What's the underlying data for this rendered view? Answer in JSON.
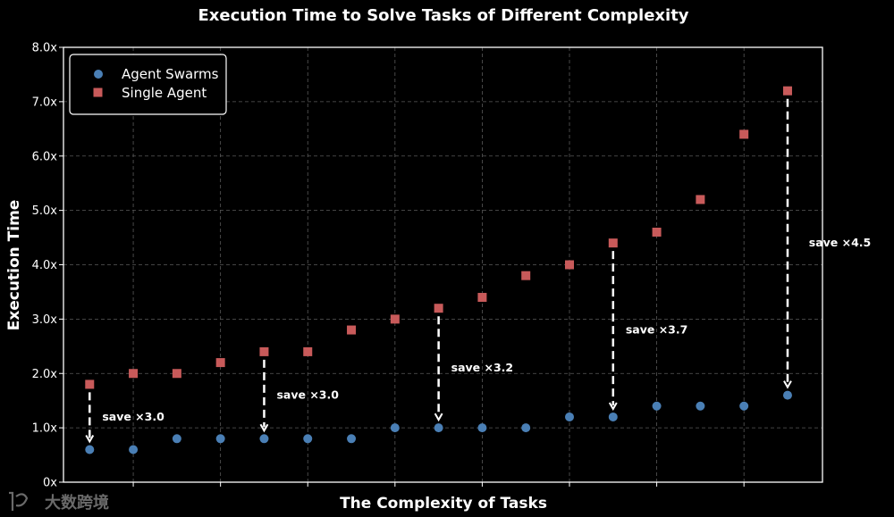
{
  "chart_data": {
    "type": "scatter",
    "title": "Execution Time to Solve Tasks of Different Complexity",
    "xlabel": "The Complexity of Tasks",
    "ylabel": "Execution Time",
    "x": [
      1,
      2,
      3,
      4,
      5,
      6,
      7,
      8,
      9,
      10,
      11,
      12,
      13,
      14,
      15,
      16,
      17
    ],
    "xlim": [
      0.4,
      17.8
    ],
    "ylim": [
      0,
      8
    ],
    "yticks": [
      0,
      1,
      2,
      3,
      4,
      5,
      6,
      7,
      8
    ],
    "ytick_labels": [
      "0x",
      "1.0x",
      "2.0x",
      "3.0x",
      "4.0x",
      "5.0x",
      "6.0x",
      "7.0x",
      "8.0x"
    ],
    "grid": true,
    "legend_position": "top-left",
    "series": [
      {
        "name": "Agent Swarms",
        "marker": "circle",
        "color": "#4a7fb5",
        "values": [
          0.6,
          0.6,
          0.8,
          0.8,
          0.8,
          0.8,
          0.8,
          1.0,
          1.0,
          1.0,
          1.0,
          1.2,
          1.2,
          1.4,
          1.4,
          1.4,
          1.6
        ]
      },
      {
        "name": "Single Agent",
        "marker": "square",
        "color": "#c85a5a",
        "values": [
          1.8,
          2.0,
          2.0,
          2.2,
          2.4,
          2.4,
          2.8,
          3.0,
          3.2,
          3.4,
          3.8,
          4.0,
          4.4,
          4.6,
          5.2,
          6.4,
          7.2
        ]
      }
    ],
    "annotations": [
      {
        "text": "save ×3.0",
        "x": 1,
        "from": 1.8,
        "to": 0.6,
        "label_x": 2.0,
        "label_y": 1.2
      },
      {
        "text": "save ×3.0",
        "x": 5,
        "from": 2.4,
        "to": 0.8,
        "label_x": 6.0,
        "label_y": 1.6
      },
      {
        "text": "save ×3.2",
        "x": 9,
        "from": 3.2,
        "to": 1.0,
        "label_x": 10.0,
        "label_y": 2.1
      },
      {
        "text": "save ×3.7",
        "x": 13,
        "from": 4.4,
        "to": 1.2,
        "label_x": 14.0,
        "label_y": 2.8
      },
      {
        "text": "save ×4.5",
        "x": 17,
        "from": 7.2,
        "to": 1.6,
        "label_x": 18.2,
        "label_y": 4.4
      }
    ]
  },
  "watermark": {
    "text": "大数跨境"
  }
}
